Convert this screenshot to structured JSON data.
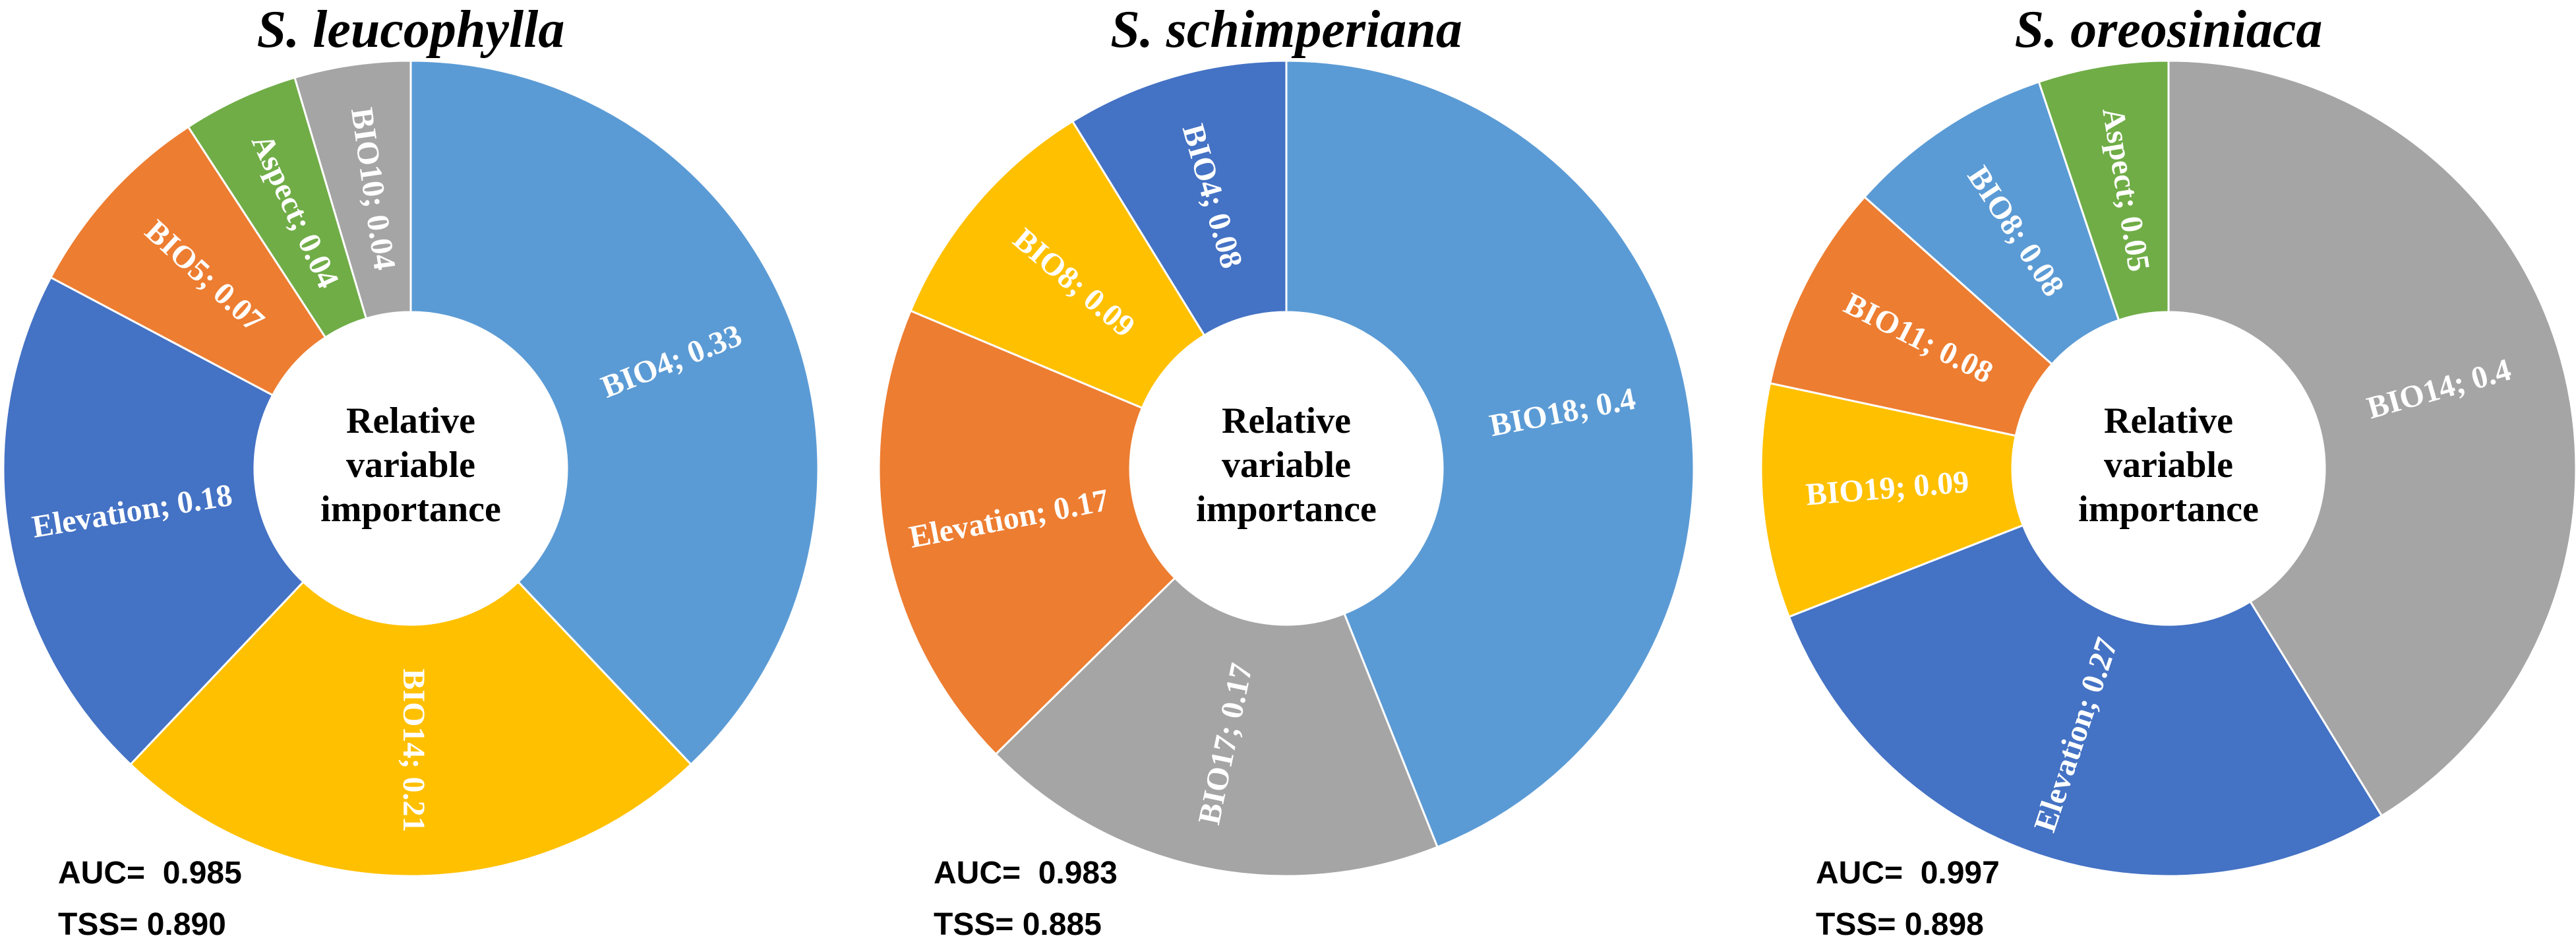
{
  "chart_data": [
    {
      "type": "donut",
      "title": "S. leucophylla",
      "center_text": "Relative variable importance",
      "values": [
        0.33,
        0.21,
        0.18,
        0.07,
        0.04,
        0.04
      ],
      "value_labels": [
        "BIO4; 0.33",
        "BIO14; 0.21",
        "Elevation; 0.18",
        "BIO5; 0.07",
        "Aspect; 0.04",
        "BIO10; 0.04"
      ],
      "colors": [
        "#5b9bd5",
        "#ffc000",
        "#4472c4",
        "#ed7d31",
        "#70ad47",
        "#a5a5a5"
      ],
      "annotations": [
        "AUC=  0.985",
        "TSS= 0.890"
      ]
    },
    {
      "type": "donut",
      "title": "S. schimperiana",
      "center_text": "Relative variable importance",
      "values": [
        0.4,
        0.17,
        0.17,
        0.09,
        0.08
      ],
      "value_labels": [
        "BIO18; 0.4",
        "BIO17; 0.17",
        "Elevation; 0.17",
        "BIO8; 0.09",
        "BIO4; 0.08"
      ],
      "colors": [
        "#5b9bd5",
        "#a5a5a5",
        "#ed7d31",
        "#ffc000",
        "#4472c4"
      ],
      "annotations": [
        "AUC=  0.983",
        "TSS= 0.885"
      ]
    },
    {
      "type": "donut",
      "title": "S. oreosiniaca",
      "center_text": "Relative variable importance",
      "values": [
        0.4,
        0.27,
        0.09,
        0.08,
        0.08,
        0.05
      ],
      "value_labels": [
        "BIO14; 0.4",
        "Elevation; 0.27",
        "BIO19; 0.09",
        "BIO11; 0.08",
        "BIO8; 0.08",
        "Aspect; 0.05"
      ],
      "colors": [
        "#a5a5a5",
        "#4472c4",
        "#ffc000",
        "#ed7d31",
        "#5b9bd5",
        "#70ad47"
      ],
      "annotations": [
        "AUC=  0.997",
        "TSS= 0.898"
      ]
    }
  ]
}
